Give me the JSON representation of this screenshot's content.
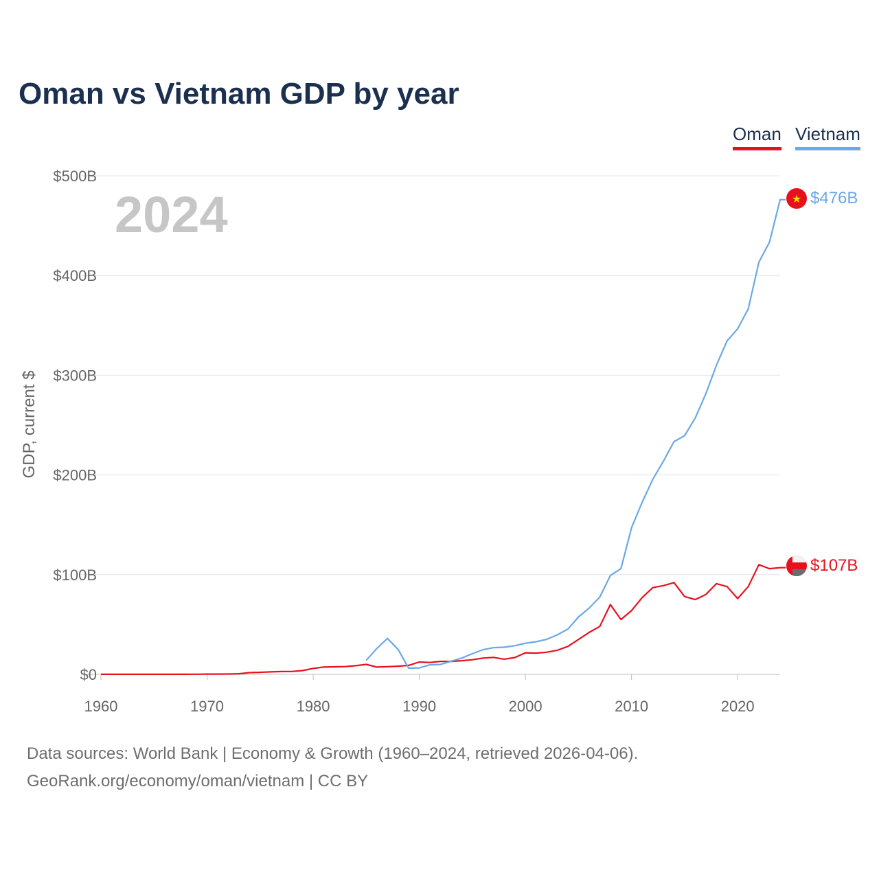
{
  "title": "Oman vs Vietnam GDP by year",
  "legend": [
    {
      "name": "Oman",
      "color": "#e8101c"
    },
    {
      "name": "Vietnam",
      "color": "#6aa8e8"
    }
  ],
  "footer": {
    "line1": "Data sources: World Bank | Economy & Growth (1960–2024, retrieved 2026-04-06).",
    "line2": "GeoRank.org/economy/oman/vietnam | CC BY"
  },
  "chart_data": {
    "type": "line",
    "title": "Oman vs Vietnam GDP by year",
    "ylabel": "GDP, current $",
    "xlabel": "",
    "year_label": "2024",
    "xlim": [
      1960,
      2024
    ],
    "ylim": [
      0,
      500
    ],
    "x_ticks": [
      1960,
      1970,
      1980,
      1990,
      2000,
      2010,
      2020
    ],
    "y_ticks": [
      {
        "value": 0,
        "label": "$0"
      },
      {
        "value": 100,
        "label": "$100B"
      },
      {
        "value": 200,
        "label": "$200B"
      },
      {
        "value": 300,
        "label": "$300B"
      },
      {
        "value": 400,
        "label": "$400B"
      },
      {
        "value": 500,
        "label": "$500B"
      }
    ],
    "grid": true,
    "legend_position": "top-right",
    "series": [
      {
        "name": "Oman",
        "color": "#e8101c",
        "end_label": "$107B",
        "flag_icon": "oman-flag-icon",
        "x": [
          1960,
          1961,
          1962,
          1963,
          1964,
          1965,
          1966,
          1967,
          1968,
          1969,
          1970,
          1971,
          1972,
          1973,
          1974,
          1975,
          1976,
          1977,
          1978,
          1979,
          1980,
          1981,
          1982,
          1983,
          1984,
          1985,
          1986,
          1987,
          1988,
          1989,
          1990,
          1991,
          1992,
          1993,
          1994,
          1995,
          1996,
          1997,
          1998,
          1999,
          2000,
          2001,
          2002,
          2003,
          2004,
          2005,
          2006,
          2007,
          2008,
          2009,
          2010,
          2011,
          2012,
          2013,
          2014,
          2015,
          2016,
          2017,
          2018,
          2019,
          2020,
          2021,
          2022,
          2023,
          2024
        ],
        "values": [
          0.05,
          0.05,
          0.05,
          0.06,
          0.06,
          0.07,
          0.08,
          0.09,
          0.1,
          0.15,
          0.26,
          0.3,
          0.35,
          0.6,
          1.7,
          2.1,
          2.5,
          2.8,
          2.9,
          3.8,
          6.0,
          7.3,
          7.6,
          7.8,
          8.7,
          10.0,
          7.3,
          7.7,
          8.2,
          9.0,
          12.4,
          11.9,
          13.0,
          13.0,
          13.7,
          14.7,
          16.3,
          17.0,
          15.2,
          16.9,
          21.6,
          21.3,
          22.2,
          24.2,
          28.0,
          35.0,
          42.0,
          48.0,
          70.0,
          55.0,
          64.0,
          77.0,
          87.0,
          89.0,
          92.0,
          78.0,
          75.0,
          80.0,
          91.0,
          88.0,
          76.0,
          88.0,
          110.0,
          106.0,
          107.0
        ]
      },
      {
        "name": "Vietnam",
        "color": "#6aa8e8",
        "end_label": "$476B",
        "flag_icon": "vietnam-flag-icon",
        "x": [
          1985,
          1986,
          1987,
          1988,
          1989,
          1990,
          1991,
          1992,
          1993,
          1994,
          1995,
          1996,
          1997,
          1998,
          1999,
          2000,
          2001,
          2002,
          2003,
          2004,
          2005,
          2006,
          2007,
          2008,
          2009,
          2010,
          2011,
          2012,
          2013,
          2014,
          2015,
          2016,
          2017,
          2018,
          2019,
          2020,
          2021,
          2022,
          2023,
          2024
        ],
        "values": [
          14.0,
          26.0,
          36.0,
          25.0,
          6.3,
          6.5,
          9.6,
          9.9,
          13.2,
          16.3,
          20.7,
          24.7,
          26.8,
          27.2,
          28.7,
          31.2,
          32.7,
          35.1,
          39.6,
          45.4,
          57.6,
          66.4,
          77.4,
          99.1,
          106.0,
          147.2,
          172.6,
          195.6,
          213.7,
          233.5,
          239.3,
          257.1,
          281.4,
          310.1,
          334.4,
          346.6,
          366.5,
          413.4,
          433.4,
          476.0
        ]
      }
    ]
  }
}
